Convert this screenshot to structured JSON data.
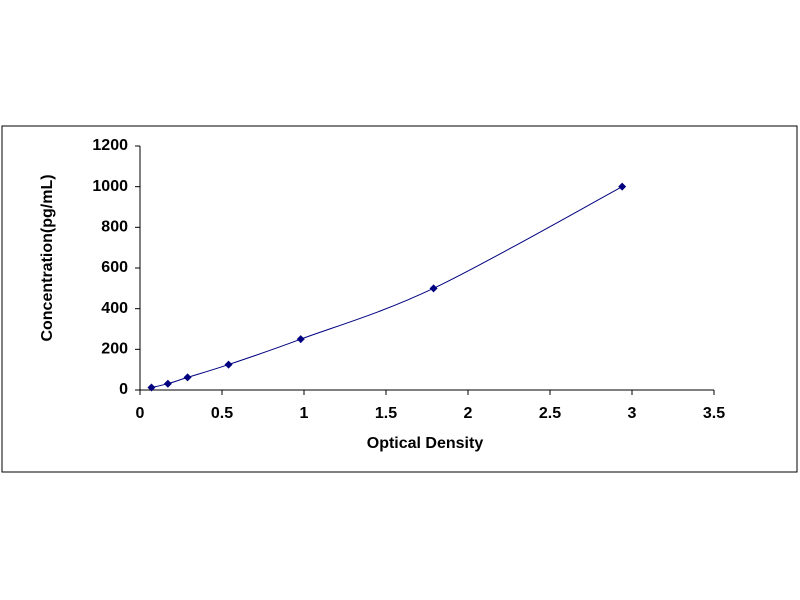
{
  "chart_data": {
    "type": "scatter",
    "x_label": "Optical Density",
    "y_label": "Concentration(pg/mL)",
    "x": [
      0.07,
      0.17,
      0.29,
      0.54,
      0.98,
      1.79,
      2.94
    ],
    "values": [
      12,
      31,
      62,
      125,
      250,
      500,
      1000
    ],
    "color": "#000080",
    "smooth_line": true,
    "xlim": [
      0,
      3.5
    ],
    "xticks": [
      0,
      0.5,
      1,
      1.5,
      2,
      2.5,
      3,
      3.5
    ],
    "ylim": [
      0,
      1200
    ],
    "yticks": [
      0,
      200,
      400,
      600,
      800,
      1000,
      1200
    ]
  }
}
